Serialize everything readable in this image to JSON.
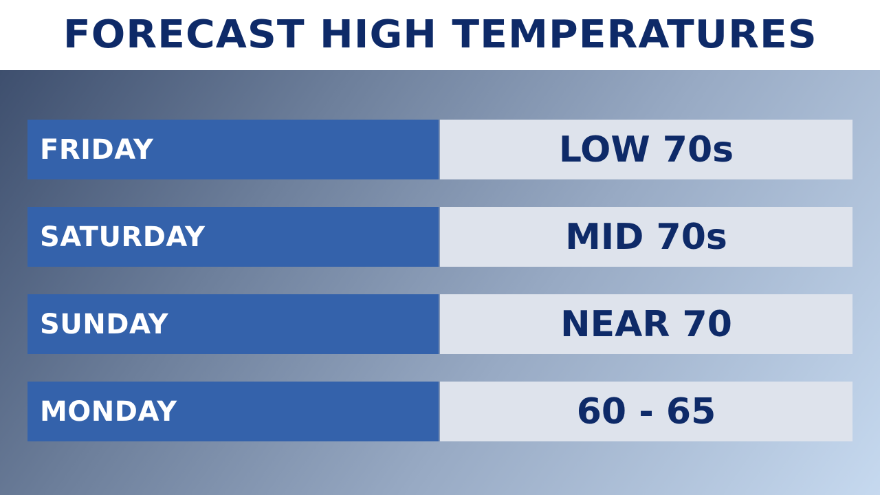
{
  "title": "FORECAST HIGH TEMPERATURES",
  "colors": {
    "title_text": "#0e2a68",
    "day_cell_bg": "#3462ab",
    "value_cell_bg": "#dee3ec",
    "value_text": "#0e2a68",
    "day_text": "#ffffff"
  },
  "forecast": [
    {
      "day": "FRIDAY",
      "value": "LOW 70s"
    },
    {
      "day": "SATURDAY",
      "value": "MID 70s"
    },
    {
      "day": "SUNDAY",
      "value": "NEAR 70"
    },
    {
      "day": "MONDAY",
      "value": "60 - 65"
    }
  ]
}
